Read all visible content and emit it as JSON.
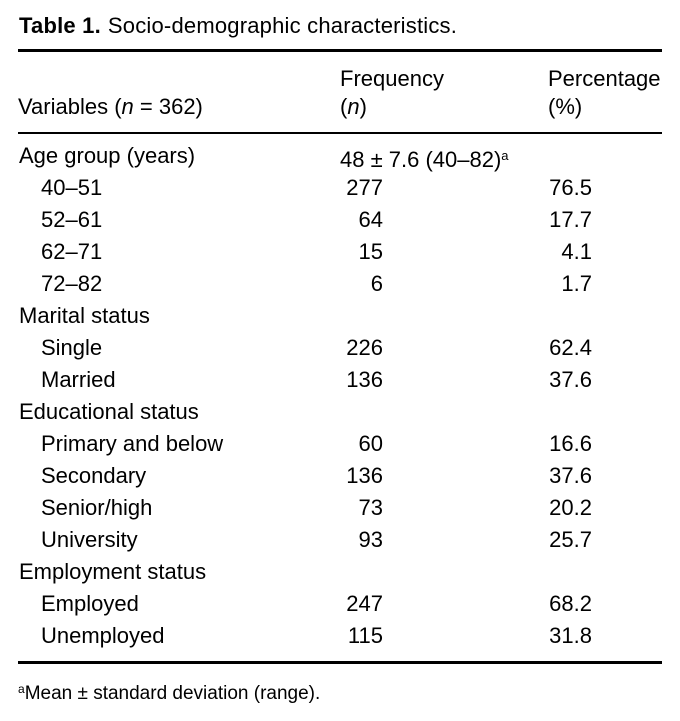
{
  "table": {
    "caption": {
      "label": "Table 1.",
      "text": "Socio-demographic characteristics."
    },
    "header": {
      "variables_pre": "Variables (",
      "variables_n": "n",
      "variables_post": " = 362)",
      "frequency_line1": "Frequency",
      "frequency_pre": "(",
      "frequency_n": "n",
      "frequency_post": ")",
      "percentage_line1": "Percentage",
      "percentage_line2": "(%)"
    },
    "rows": [
      {
        "label": "Age group (years)",
        "indent": false,
        "frequency": "48 ± 7.6 (40–82)",
        "frequency_sup": "a",
        "percentage": ""
      },
      {
        "label": "40–51",
        "indent": true,
        "frequency": "277",
        "percentage": "76.5"
      },
      {
        "label": "52–61",
        "indent": true,
        "frequency": "64",
        "percentage": "17.7"
      },
      {
        "label": "62–71",
        "indent": true,
        "frequency": "15",
        "percentage": "4.1"
      },
      {
        "label": "72–82",
        "indent": true,
        "frequency": "6",
        "percentage": "1.7"
      },
      {
        "label": "Marital status",
        "indent": false,
        "frequency": "",
        "percentage": ""
      },
      {
        "label": "Single",
        "indent": true,
        "frequency": "226",
        "percentage": "62.4"
      },
      {
        "label": "Married",
        "indent": true,
        "frequency": "136",
        "percentage": "37.6"
      },
      {
        "label": "Educational status",
        "indent": false,
        "frequency": "",
        "percentage": ""
      },
      {
        "label": "Primary and below",
        "indent": true,
        "frequency": "60",
        "percentage": "16.6"
      },
      {
        "label": "Secondary",
        "indent": true,
        "frequency": "136",
        "percentage": "37.6"
      },
      {
        "label": "Senior/high",
        "indent": true,
        "frequency": "73",
        "percentage": "20.2"
      },
      {
        "label": "University",
        "indent": true,
        "frequency": "93",
        "percentage": "25.7"
      },
      {
        "label": "Employment status",
        "indent": false,
        "frequency": "",
        "percentage": ""
      },
      {
        "label": "Employed",
        "indent": true,
        "frequency": "247",
        "percentage": "68.2"
      },
      {
        "label": "Unemployed",
        "indent": true,
        "frequency": "115",
        "percentage": "31.8"
      }
    ],
    "footnote": {
      "sup": "a",
      "text": "Mean ± standard deviation (range)."
    },
    "colors": {
      "text": "#000000",
      "background": "#ffffff",
      "rule": "#000000"
    }
  }
}
